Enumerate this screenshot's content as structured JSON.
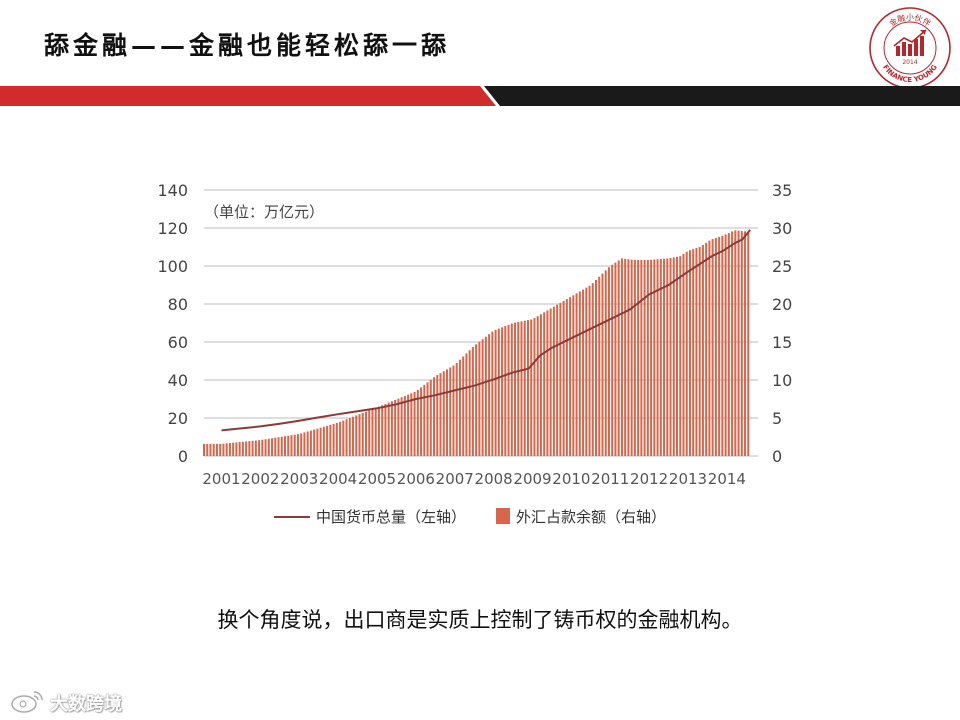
{
  "slide": {
    "title": "舔金融——金融也能轻松舔一舔",
    "caption": "换个角度说，出口商是实质上控制了铸币权的金融机构。",
    "accent_red": "#d22b2b",
    "band_black": "#1a1a1a"
  },
  "logo": {
    "icon": "finance-young-seal-icon",
    "top_text": "金融小伙伴",
    "bottom_text": "FINANCE YOUNG",
    "year": "2014",
    "color": "#b5272d"
  },
  "watermark": {
    "icon": "weibo-logo-icon",
    "text": "大数跨境"
  },
  "chart_data": {
    "type": "bar+line",
    "title": "",
    "unit_note": "（单位：万亿元）",
    "x_tick_labels": [
      "2001",
      "2002",
      "2003",
      "2004",
      "2005",
      "2006",
      "2007",
      "2008",
      "2009",
      "2010",
      "2011",
      "2012",
      "2013",
      "2014"
    ],
    "left_axis": {
      "min": 0,
      "max": 140,
      "ticks": [
        0,
        20,
        40,
        60,
        80,
        100,
        120,
        140
      ]
    },
    "right_axis": {
      "min": 0,
      "max": 35,
      "ticks": [
        0,
        5,
        10,
        15,
        20,
        25,
        30,
        35
      ]
    },
    "grid": true,
    "legend_placement": "bottom",
    "series": [
      {
        "name": "中国货币总量（左轴）",
        "kind": "line",
        "axis": "left",
        "color": "#8b3a3a",
        "points": [
          [
            2001.0,
            13.5
          ],
          [
            2001.5,
            14.5
          ],
          [
            2002.0,
            15.6
          ],
          [
            2002.5,
            17.0
          ],
          [
            2003.0,
            18.6
          ],
          [
            2003.5,
            20.3
          ],
          [
            2004.0,
            22.0
          ],
          [
            2004.5,
            23.5
          ],
          [
            2005.0,
            25.1
          ],
          [
            2005.5,
            27.2
          ],
          [
            2006.0,
            30.0
          ],
          [
            2006.5,
            32.0
          ],
          [
            2007.0,
            34.5
          ],
          [
            2007.5,
            37.0
          ],
          [
            2008.0,
            40.3
          ],
          [
            2008.5,
            44.0
          ],
          [
            2008.9,
            46.0
          ],
          [
            2009.2,
            53.0
          ],
          [
            2009.5,
            57.0
          ],
          [
            2010.0,
            62.0
          ],
          [
            2010.5,
            67.0
          ],
          [
            2011.0,
            72.0
          ],
          [
            2011.5,
            77.0
          ],
          [
            2012.0,
            85.0
          ],
          [
            2012.5,
            90.0
          ],
          [
            2013.0,
            97.0
          ],
          [
            2013.3,
            101.0
          ],
          [
            2013.6,
            105.0
          ],
          [
            2013.9,
            108.0
          ],
          [
            2014.2,
            112.0
          ],
          [
            2014.4,
            114.0
          ],
          [
            2014.6,
            119.0
          ]
        ]
      },
      {
        "name": "外汇占款余额（右轴）",
        "kind": "bar",
        "axis": "right",
        "color": "#d9664a",
        "points": [
          [
            2001.0,
            1.6
          ],
          [
            2002.0,
            2.1
          ],
          [
            2003.0,
            2.9
          ],
          [
            2004.0,
            4.4
          ],
          [
            2005.0,
            6.4
          ],
          [
            2006.0,
            8.5
          ],
          [
            2006.5,
            10.5
          ],
          [
            2007.0,
            12.0
          ],
          [
            2007.5,
            14.5
          ],
          [
            2008.0,
            16.5
          ],
          [
            2008.5,
            17.5
          ],
          [
            2009.0,
            18.0
          ],
          [
            2009.5,
            19.5
          ],
          [
            2010.0,
            21.0
          ],
          [
            2010.5,
            22.5
          ],
          [
            2011.0,
            25.0
          ],
          [
            2011.3,
            26.0
          ],
          [
            2011.6,
            25.8
          ],
          [
            2012.0,
            25.8
          ],
          [
            2012.5,
            26.0
          ],
          [
            2012.8,
            26.3
          ],
          [
            2013.0,
            27.0
          ],
          [
            2013.3,
            27.5
          ],
          [
            2013.6,
            28.5
          ],
          [
            2013.9,
            29.0
          ],
          [
            2014.2,
            29.7
          ],
          [
            2014.6,
            29.5
          ]
        ]
      }
    ]
  }
}
